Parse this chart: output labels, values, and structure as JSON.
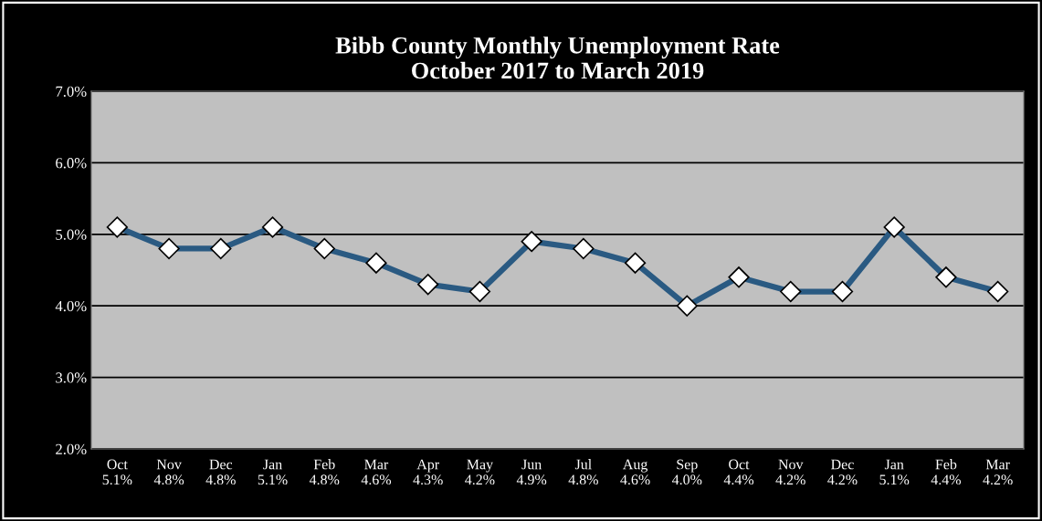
{
  "chart_data": {
    "type": "line",
    "title": "Bibb County Monthly Unemployment Rate\nOctober 2017 to March 2019",
    "categories": [
      "Oct\n5.1%",
      "Nov\n4.8%",
      "Dec\n4.8%",
      "Jan\n5.1%",
      "Feb\n4.8%",
      "Mar\n4.6%",
      "Apr\n4.3%",
      "May\n4.2%",
      "Jun\n4.9%",
      "Jul\n4.8%",
      "Aug\n4.6%",
      "Sep\n4.0%",
      "Oct\n4.4%",
      "Nov\n4.2%",
      "Dec\n4.2%",
      "Jan\n5.1%",
      "Feb\n4.4%",
      "Mar\n4.2%"
    ],
    "series": [
      {
        "color": "#2a5a82",
        "values": [
          5.1,
          4.8,
          4.8,
          5.1,
          4.8,
          4.6,
          4.3,
          4.2,
          4.9,
          4.8,
          4.6,
          4.0,
          4.4,
          4.2,
          4.2,
          5.1,
          4.4,
          4.2
        ]
      }
    ],
    "ylim": [
      2,
      7
    ],
    "yticks": [
      {
        "value": 2,
        "label": "2.0%"
      },
      {
        "value": 3,
        "label": "3.0%"
      },
      {
        "value": 4,
        "label": "4.0%"
      },
      {
        "value": 5,
        "label": "5.0%"
      },
      {
        "value": 6,
        "label": "6.0%"
      },
      {
        "value": 7,
        "label": "7.0%"
      }
    ],
    "grid": "y",
    "marker": "diamond",
    "line_style": "solid",
    "legend": false
  }
}
